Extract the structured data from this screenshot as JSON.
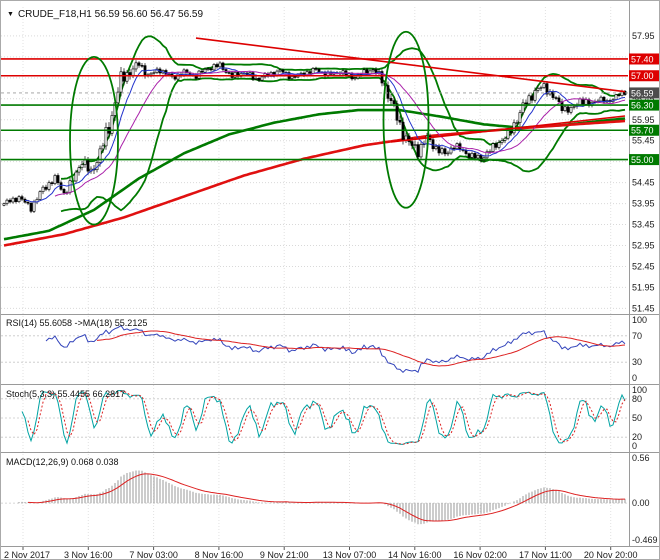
{
  "title": {
    "symbol_line": "CRUDE_F18,H1 56.59 56.60 56.47 56.59",
    "dropdown_icon": "▼"
  },
  "colors": {
    "background": "#ffffff",
    "grid": "#d9d9d9",
    "separator": "#9a9a9a",
    "candle": "#000000",
    "resistance_red": "#dd0000",
    "support_green": "#007a00",
    "current_price_badge": "#4d4d4d"
  },
  "chart_data": {
    "type": "candlestick",
    "symbol": "CRUDE_F18",
    "timeframe": "H1",
    "ohlc_readout": {
      "open": "56.59",
      "high": "56.60",
      "low": "56.47",
      "close": "56.59"
    },
    "x_axis": {
      "labels": [
        "2 Nov 2017",
        "3 Nov 16:00",
        "7 Nov 03:00",
        "8 Nov 16:00",
        "9 Nov 21:00",
        "13 Nov 07:00",
        "14 Nov 16:00",
        "16 Nov 02:00",
        "17 Nov 11:00",
        "20 Nov 20:00"
      ]
    },
    "main_pane": {
      "price_range": [
        51.34,
        58.64
      ],
      "grid_labels": [
        "57.95",
        "57.45",
        "56.95",
        "56.45",
        "55.95",
        "55.45",
        "54.95",
        "54.45",
        "53.95",
        "53.45",
        "52.95",
        "52.45",
        "51.95",
        "51.45"
      ],
      "level_lines": [
        {
          "price": 57.4,
          "label": "57.40",
          "color": "#dd0000"
        },
        {
          "price": 57.0,
          "label": "57.00",
          "color": "#dd0000"
        },
        {
          "price": 56.3,
          "label": "56.30",
          "color": "#007a00"
        },
        {
          "price": 55.7,
          "label": "55.70",
          "color": "#007a00"
        },
        {
          "price": 55.0,
          "label": "55.00",
          "color": "#007a00"
        }
      ],
      "current_price": {
        "value": 56.59,
        "label": "56.59",
        "color": "#4d4d4d"
      },
      "trend_lines": [
        {
          "name": "descending-resistance-trendline",
          "b1": 64,
          "p1": 57.9,
          "b2": 207,
          "p2": 56.62,
          "color": "#dd0000",
          "width": 1.6
        },
        {
          "name": "ascending-support-trendline",
          "b1": 129,
          "p1": 55.42,
          "b2": 207,
          "p2": 56.04,
          "color": "#dd0000",
          "width": 1.6
        }
      ],
      "ellipses": [
        {
          "bar": 30,
          "price": 55.45,
          "rx_bars": 8,
          "ry_price": 2.0,
          "color": "#007a00",
          "width": 1.8
        },
        {
          "bar": 134,
          "price": 55.95,
          "rx_bars": 7.5,
          "ry_price": 2.1,
          "color": "#007a00",
          "width": 1.8
        }
      ],
      "bar_count": 208,
      "candle_anchors": [
        [
          0,
          53.95,
          0.1
        ],
        [
          5,
          54.1,
          0.1
        ],
        [
          9,
          53.85,
          0.11
        ],
        [
          13,
          54.3,
          0.13
        ],
        [
          17,
          54.55,
          0.12
        ],
        [
          20,
          54.2,
          0.12
        ],
        [
          23,
          54.5,
          0.16
        ],
        [
          26,
          55.0,
          0.2
        ],
        [
          29,
          54.65,
          0.22
        ],
        [
          32,
          55.2,
          0.24
        ],
        [
          35,
          55.75,
          0.28
        ],
        [
          37,
          56.4,
          0.3
        ],
        [
          39,
          56.9,
          0.26
        ],
        [
          42,
          57.1,
          0.2
        ],
        [
          45,
          57.28,
          0.15
        ],
        [
          48,
          57.0,
          0.13
        ],
        [
          52,
          57.15,
          0.11
        ],
        [
          56,
          56.95,
          0.11
        ],
        [
          60,
          57.08,
          0.1
        ],
        [
          64,
          57.0,
          0.1
        ],
        [
          68,
          57.18,
          0.1
        ],
        [
          72,
          57.25,
          0.1
        ],
        [
          76,
          56.98,
          0.1
        ],
        [
          80,
          57.08,
          0.1
        ],
        [
          84,
          56.92,
          0.1
        ],
        [
          88,
          57.02,
          0.1
        ],
        [
          92,
          57.12,
          0.09
        ],
        [
          96,
          56.96,
          0.09
        ],
        [
          100,
          57.06,
          0.09
        ],
        [
          104,
          57.14,
          0.09
        ],
        [
          108,
          57.02,
          0.1
        ],
        [
          112,
          57.1,
          0.1
        ],
        [
          116,
          56.96,
          0.1
        ],
        [
          120,
          57.06,
          0.11
        ],
        [
          123,
          57.16,
          0.12
        ],
        [
          126,
          56.9,
          0.17
        ],
        [
          129,
          56.4,
          0.24
        ],
        [
          132,
          55.8,
          0.26
        ],
        [
          135,
          55.38,
          0.24
        ],
        [
          138,
          55.22,
          0.2
        ],
        [
          141,
          55.5,
          0.17
        ],
        [
          144,
          55.28,
          0.15
        ],
        [
          147,
          55.12,
          0.14
        ],
        [
          150,
          55.34,
          0.13
        ],
        [
          153,
          55.2,
          0.12
        ],
        [
          156,
          55.08,
          0.12
        ],
        [
          159,
          55.02,
          0.12
        ],
        [
          162,
          55.22,
          0.12
        ],
        [
          165,
          55.42,
          0.14
        ],
        [
          168,
          55.58,
          0.16
        ],
        [
          171,
          55.98,
          0.2
        ],
        [
          174,
          56.38,
          0.19
        ],
        [
          177,
          56.62,
          0.16
        ],
        [
          180,
          56.76,
          0.14
        ],
        [
          183,
          56.5,
          0.14
        ],
        [
          186,
          56.26,
          0.15
        ],
        [
          189,
          56.16,
          0.14
        ],
        [
          192,
          56.44,
          0.13
        ],
        [
          195,
          56.3,
          0.12
        ],
        [
          198,
          56.46,
          0.11
        ],
        [
          201,
          56.36,
          0.1
        ],
        [
          204,
          56.52,
          0.09
        ],
        [
          207,
          56.59,
          0.08
        ]
      ],
      "bollinger": {
        "period": 20,
        "deviation": 1.8,
        "color": "#007a00",
        "width": 1.8
      },
      "ma_curves": [
        {
          "name": "slow-ma-green",
          "color": "#007a00",
          "width": 2.6,
          "anchors": [
            [
              0,
              53.1
            ],
            [
              15,
              53.3
            ],
            [
              30,
              53.8
            ],
            [
              45,
              54.55
            ],
            [
              60,
              55.15
            ],
            [
              75,
              55.6
            ],
            [
              90,
              55.88
            ],
            [
              105,
              56.08
            ],
            [
              118,
              56.18
            ],
            [
              132,
              56.18
            ],
            [
              146,
              56.02
            ],
            [
              160,
              55.84
            ],
            [
              172,
              55.76
            ],
            [
              186,
              55.82
            ],
            [
              196,
              55.9
            ],
            [
              207,
              55.98
            ]
          ]
        },
        {
          "name": "slow-ma-red",
          "color": "#e01010",
          "width": 2.6,
          "anchors": [
            [
              0,
              52.95
            ],
            [
              20,
              53.22
            ],
            [
              40,
              53.62
            ],
            [
              60,
              54.12
            ],
            [
              80,
              54.62
            ],
            [
              100,
              55.02
            ],
            [
              120,
              55.34
            ],
            [
              140,
              55.55
            ],
            [
              160,
              55.68
            ],
            [
              180,
              55.79
            ],
            [
              207,
              55.92
            ]
          ]
        }
      ],
      "fast_ma": [
        {
          "period": 8,
          "color": "#2233cc",
          "width": 1
        },
        {
          "period": 18,
          "color": "#aa22aa",
          "width": 1
        }
      ]
    },
    "rsi_pane": {
      "label": "RSI(14) 55.6058  ->MA(18) 55.2125",
      "period": 14,
      "ma_period": 18,
      "levels": [
        100,
        70,
        30,
        0
      ],
      "color": "#3344bb",
      "ma_color": "#dd2222"
    },
    "stoch_pane": {
      "label": "Stoch(5,3,3) 55.4455 66.2817",
      "k": 5,
      "d": 3,
      "slowing": 3,
      "levels": [
        100,
        80,
        50,
        20,
        0
      ],
      "color": "#00a3a3",
      "signal_color": "#dd2222"
    },
    "macd_pane": {
      "label": "MACD(12,26,9) 0.068 0.038",
      "fast": 12,
      "slow": 26,
      "signal": 9,
      "range": [
        -0.5,
        0.6
      ],
      "display_gain": 0.55,
      "axis_labels": [
        {
          "v": 0.56,
          "t": "0.56"
        },
        {
          "v": 0,
          "t": "0.00"
        },
        {
          "v": -0.469,
          "t": "-0.469"
        }
      ],
      "hist_color": "#999999",
      "signal_color": "#dd2222"
    }
  }
}
